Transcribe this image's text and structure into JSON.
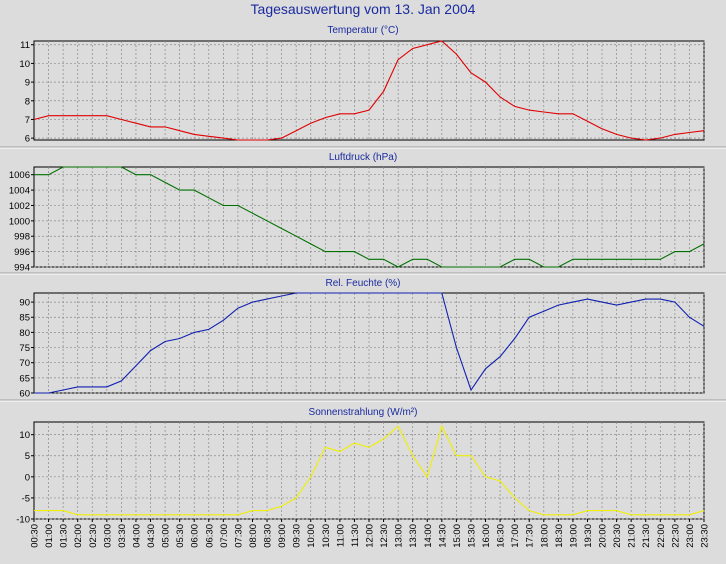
{
  "title": "Tagesauswertung vom 13. Jan 2004",
  "time_labels": [
    "00:30",
    "01:00",
    "01:30",
    "02:00",
    "02:30",
    "03:00",
    "03:30",
    "04:00",
    "04:30",
    "05:00",
    "05:30",
    "06:00",
    "06:30",
    "07:00",
    "07:30",
    "08:00",
    "08:30",
    "09:00",
    "09:30",
    "10:00",
    "10:30",
    "11:00",
    "11:30",
    "12:00",
    "12:30",
    "13:00",
    "13:30",
    "14:00",
    "14:30",
    "15:00",
    "15:30",
    "16:00",
    "16:30",
    "17:00",
    "17:30",
    "18:00",
    "18:30",
    "19:00",
    "19:30",
    "20:00",
    "20:30",
    "21:00",
    "21:30",
    "22:00",
    "22:30",
    "23:00",
    "23:30"
  ],
  "colors": {
    "background": "#dcdcdc",
    "plot": "#dcdcdc",
    "grid": "#8a8a8a",
    "title": "#1a2aa0"
  },
  "chart_data": [
    {
      "type": "line",
      "title": "Temperatur (°C)",
      "series": [
        {
          "color": "#e00000",
          "values": [
            7.0,
            7.2,
            7.2,
            7.2,
            7.2,
            7.2,
            7.0,
            6.8,
            6.6,
            6.6,
            6.4,
            6.2,
            6.1,
            6.0,
            5.9,
            5.9,
            5.9,
            6.0,
            6.4,
            6.8,
            7.1,
            7.3,
            7.3,
            7.5,
            8.5,
            10.2,
            10.8,
            11.0,
            11.2,
            10.5,
            9.5,
            9.0,
            8.2,
            7.7,
            7.5,
            7.4,
            7.3,
            7.3,
            6.9,
            6.5,
            6.2,
            6.0,
            5.9,
            6.0,
            6.2,
            6.3,
            6.4
          ]
        }
      ],
      "ylim": [
        5.9,
        11.2
      ],
      "yticks": [
        6,
        7,
        8,
        9,
        10,
        11
      ],
      "grid": true
    },
    {
      "type": "line",
      "title": "Luftdruck (hPa)",
      "series": [
        {
          "color": "#007000",
          "values": [
            1006,
            1006,
            1007,
            1007,
            1007,
            1007,
            1007,
            1006,
            1006,
            1005,
            1004,
            1004,
            1003,
            1002,
            1002,
            1001,
            1000,
            999,
            998,
            997,
            996,
            996,
            996,
            995,
            995,
            994,
            995,
            995,
            994,
            994,
            994,
            994,
            994,
            995,
            995,
            994,
            994,
            995,
            995,
            995,
            995,
            995,
            995,
            995,
            996,
            996,
            997
          ]
        }
      ],
      "ylim": [
        994,
        1007
      ],
      "yticks": [
        994,
        996,
        998,
        1000,
        1002,
        1004,
        1006
      ],
      "grid": true
    },
    {
      "type": "line",
      "title": "Rel. Feuchte (%)",
      "series": [
        {
          "color": "#1020b0",
          "values": [
            60,
            60,
            61,
            62,
            62,
            62,
            64,
            69,
            74,
            77,
            78,
            80,
            81,
            84,
            88,
            90,
            91,
            92,
            93,
            93,
            93,
            93,
            93,
            93,
            93,
            93,
            93,
            93,
            93,
            75,
            61,
            68,
            72,
            78,
            85,
            87,
            89,
            90,
            91,
            90,
            89,
            90,
            91,
            91,
            90,
            85,
            82
          ]
        }
      ],
      "ylim": [
        60,
        93
      ],
      "yticks": [
        60,
        65,
        70,
        75,
        80,
        85,
        90
      ],
      "grid": true
    },
    {
      "type": "line",
      "title": "Sonnenstrahlung (W/m²)",
      "series": [
        {
          "color": "#f0f000",
          "values": [
            -8,
            -8,
            -8,
            -9,
            -9,
            -9,
            -9,
            -9,
            -9,
            -9,
            -9,
            -9,
            -9,
            -9,
            -9,
            -8,
            -8,
            -7,
            -5,
            0,
            7,
            6,
            8,
            7,
            9,
            12,
            5,
            0,
            12,
            5,
            5,
            0,
            -1,
            -5,
            -8,
            -9,
            -9,
            -9,
            -8,
            -8,
            -8,
            -9,
            -9,
            -9,
            -9,
            -9,
            -8
          ]
        }
      ],
      "ylim": [
        -10,
        13
      ],
      "yticks": [
        -10,
        -5,
        0,
        5,
        10
      ],
      "grid": true
    }
  ]
}
